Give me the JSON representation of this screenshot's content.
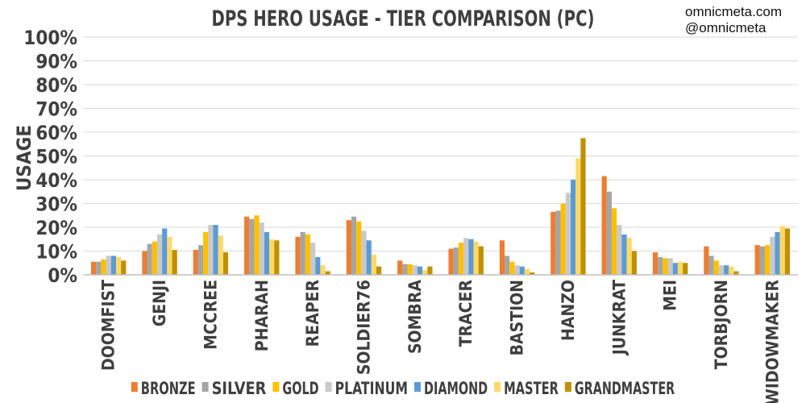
{
  "watermark": {
    "line1": "omnicmeta.com",
    "line2": "@omnicmeta"
  },
  "chart_data": {
    "type": "bar",
    "title": "DPS HERO USAGE - TIER COMPARISON (PC)",
    "ylabel": "USAGE",
    "xlabel": "",
    "ylim": [
      0,
      100
    ],
    "y_ticks": [
      "0%",
      "10%",
      "20%",
      "30%",
      "40%",
      "50%",
      "60%",
      "70%",
      "80%",
      "90%",
      "100%"
    ],
    "grid": true,
    "legend_position": "bottom",
    "categories": [
      "DOOMFIST",
      "GENJI",
      "MCCREE",
      "PHARAH",
      "REAPER",
      "SOLDIER76",
      "SOMBRA",
      "TRACER",
      "BASTION",
      "HANZO",
      "JUNKRAT",
      "MEI",
      "TORBJORN",
      "WIDOWMAKER"
    ],
    "series": [
      {
        "name": "BRONZE",
        "color": "#ed7d31",
        "values": [
          5.5,
          10,
          10.5,
          24.5,
          16,
          23,
          6,
          11,
          14.5,
          26.5,
          41.5,
          9.5,
          12,
          12.5
        ]
      },
      {
        "name": "SILVER",
        "color": "#a5a5a5",
        "values": [
          5.5,
          13,
          12.5,
          23.5,
          18,
          24.5,
          4.5,
          11.5,
          8,
          27,
          35,
          7.5,
          8,
          12
        ]
      },
      {
        "name": "GOLD",
        "color": "#ffc000",
        "values": [
          6.5,
          14,
          18,
          25,
          17,
          22.5,
          4.5,
          13.5,
          5.5,
          30,
          28,
          7,
          6,
          12.5
        ]
      },
      {
        "name": "PLATINUM",
        "color": "#c9c9c9",
        "values": [
          8,
          17,
          21,
          22,
          13.5,
          18.5,
          4,
          15.5,
          4,
          34.5,
          21,
          7,
          4,
          16
        ]
      },
      {
        "name": "DIAMOND",
        "color": "#5b9bd5",
        "values": [
          8,
          19.5,
          21,
          18,
          7.5,
          14.5,
          3.5,
          15,
          3.5,
          40,
          17,
          5,
          4,
          18
        ]
      },
      {
        "name": "MASTER",
        "color": "#ffd966",
        "values": [
          7.5,
          16,
          16.5,
          15,
          4,
          8.5,
          2,
          14,
          2.5,
          49,
          15.5,
          5.5,
          3.5,
          20.5
        ]
      },
      {
        "name": "GRANDMASTER",
        "color": "#bf9000",
        "values": [
          6,
          10.5,
          9.5,
          14.5,
          1.5,
          3.5,
          3.5,
          12,
          1,
          57.5,
          10,
          5,
          1.5,
          19.5
        ]
      }
    ]
  }
}
